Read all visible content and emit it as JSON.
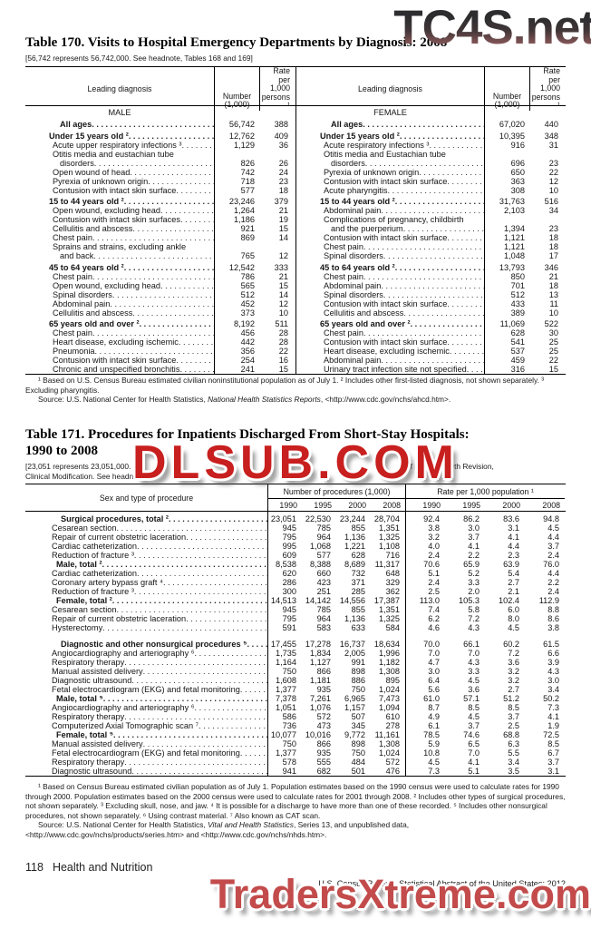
{
  "watermarks": {
    "top": "TC4S.net",
    "middle": "DLSUB.COM",
    "bottom": "TradersXtreme.com",
    "red": "#c81f1f"
  },
  "table170": {
    "title": "Table 170. Visits to Hospital Emergency Departments by Diagnosis: 2008",
    "headnote": "[56,742 represents 56,742,000. See headnote, Tables 168 and 169]",
    "header": {
      "diagnosis": "Leading diagnosis",
      "number": "Number\n(1,000)",
      "rate": "Rate per\n1,000\npersons ¹"
    },
    "male_label": "MALE",
    "female_label": "FEMALE",
    "rows": [
      [
        "a",
        "All ages",
        "56,742",
        "388",
        "a",
        "All ages",
        "67,020",
        "440"
      ],
      [
        "g",
        "Under 15 years old ²",
        "12,762",
        "409",
        "g",
        "Under 15 years old ²",
        "10,395",
        "348"
      ],
      [
        "i",
        "Acute upper respiratory infections ³",
        "1,129",
        "36",
        "i",
        "Acute respiratory infections ³",
        "916",
        "31"
      ],
      [
        "w",
        "Otitis media and eustachian tube",
        "",
        "",
        "w",
        "Otitis media and Eustachian tube",
        "",
        ""
      ],
      [
        "c",
        "disorders",
        "826",
        "26",
        "c",
        "disorders",
        "696",
        "23"
      ],
      [
        "i",
        "Open wound of head",
        "742",
        "24",
        "i",
        "Pyrexia of unknown origin",
        "650",
        "22"
      ],
      [
        "i",
        "Pyrexia of unknown origin",
        "718",
        "23",
        "i",
        "Contusion with intact skin surface",
        "363",
        "12"
      ],
      [
        "i",
        "Contusion with intact skin surface",
        "577",
        "18",
        "i",
        "Acute pharyngitis",
        "308",
        "10"
      ],
      [
        "g",
        "15 to 44 years old ²",
        "23,246",
        "379",
        "g",
        "15 to 44 years old ²",
        "31,763",
        "516"
      ],
      [
        "i",
        "Open wound, excluding head",
        "1,264",
        "21",
        "i",
        "Abdominal pain",
        "2,103",
        "34"
      ],
      [
        "i",
        "Contusion with intact skin surfaces",
        "1,186",
        "19",
        "w",
        "Complications of pregnancy, childbirth",
        "",
        ""
      ],
      [
        "i",
        "Cellulitis and abscess",
        "921",
        "15",
        "c",
        "and the puerperium",
        "1,394",
        "23"
      ],
      [
        "i",
        "Chest pain",
        "869",
        "14",
        "i",
        "Contusion with intact skin surface",
        "1,121",
        "18"
      ],
      [
        "w",
        "Sprains and strains, excluding ankle",
        "",
        "",
        "i",
        "Chest pain",
        "1,121",
        "18"
      ],
      [
        "c",
        "and back",
        "765",
        "12",
        "i",
        "Spinal disorders",
        "1,048",
        "17"
      ],
      [
        "g",
        "45 to 64 years old ²",
        "12,542",
        "333",
        "g",
        "45 to 64 years old ²",
        "13,793",
        "346"
      ],
      [
        "i",
        "Chest pain",
        "786",
        "21",
        "i",
        "Chest pain",
        "850",
        "21"
      ],
      [
        "i",
        "Open wound, excluding head",
        "565",
        "15",
        "i",
        "Abdominal pain",
        "701",
        "18"
      ],
      [
        "i",
        "Spinal disorders",
        "512",
        "14",
        "i",
        "Spinal disorders",
        "512",
        "13"
      ],
      [
        "i",
        "Abdominal pain",
        "452",
        "12",
        "i",
        "Contusion with intact skin surface",
        "433",
        "11"
      ],
      [
        "i",
        "Cellulitis and abscess",
        "373",
        "10",
        "i",
        "Cellulitis and abscess",
        "389",
        "10"
      ],
      [
        "g",
        "65 years old and over ²",
        "8,192",
        "511",
        "g",
        "65 years old and over ²",
        "11,069",
        "522"
      ],
      [
        "i",
        "Chest pain",
        "456",
        "28",
        "i",
        "Chest pain",
        "628",
        "30"
      ],
      [
        "i",
        "Heart disease, excluding ischemic",
        "442",
        "28",
        "i",
        "Contusion with intact skin surface",
        "541",
        "25"
      ],
      [
        "i",
        "Pneumonia",
        "356",
        "22",
        "i",
        "Heart disease, excluding ischemic",
        "537",
        "25"
      ],
      [
        "i",
        "Contusion with intact skin surface",
        "254",
        "16",
        "i",
        "Abdominal pain",
        "459",
        "22"
      ],
      [
        "i",
        "Chronic and unspecified bronchitis",
        "241",
        "15",
        "i",
        "Urinary tract infection site not specified",
        "316",
        "15"
      ]
    ],
    "footnote1": "¹ Based on U.S. Census Bureau estimated civilian noninstitutional population as of July 1. ² Includes other first-listed diagnosis, not shown separately. ³ Excluding pharyngitis.",
    "source_prefix": "Source: U.S. National Center for Health Statistics, ",
    "source_italic": "National Health Statistics Reports",
    "source_suffix": ", <http://www.cdc.gov/nchs/ahcd.htm>."
  },
  "table171": {
    "title_line1": "Table 171. Procedures for Inpatients Discharged From Short-Stay Hospitals:",
    "title_line2": "1990 to 2008",
    "headnote_l1a": "[23,051 represents 23,051,000. I",
    "headnote_l1b": "of Diseases, 9th Revision,",
    "headnote_l2": "Clinical Modification. See headn",
    "header": {
      "stub": "Sex and type of procedure",
      "group1": "Number of procedures (1,000)",
      "group2": "Rate per 1,000 population ¹"
    },
    "years": [
      "1990",
      "1995",
      "2000",
      "2008"
    ],
    "rows": [
      [
        "tf",
        "Surgical procedures, total ²",
        "23,051",
        "22,530",
        "23,244",
        "28,704",
        "92.4",
        "86.2",
        "83.6",
        "94.8"
      ],
      [
        "i",
        "Cesarean section",
        "945",
        "785",
        "855",
        "1,351",
        "3.8",
        "3.0",
        "3.1",
        "4.5"
      ],
      [
        "i",
        "Repair of current obstetric laceration",
        "795",
        "964",
        "1,136",
        "1,325",
        "3.2",
        "3.7",
        "4.1",
        "4.4"
      ],
      [
        "i",
        "Cardiac catheterization",
        "995",
        "1,068",
        "1,221",
        "1,108",
        "4.0",
        "4.1",
        "4.4",
        "3.7"
      ],
      [
        "i",
        "Reduction of fracture ³",
        "609",
        "577",
        "628",
        "716",
        "2.4",
        "2.2",
        "2.3",
        "2.4"
      ],
      [
        "m",
        "Male, total ²",
        "8,538",
        "8,388",
        "8,689",
        "11,317",
        "70.6",
        "65.9",
        "63.9",
        "76.0"
      ],
      [
        "i",
        "Cardiac catheterization",
        "620",
        "660",
        "732",
        "648",
        "5.1",
        "5.2",
        "5.4",
        "4.4"
      ],
      [
        "i",
        "Coronary artery bypass graft ⁴",
        "286",
        "423",
        "371",
        "329",
        "2.4",
        "3.3",
        "2.7",
        "2.2"
      ],
      [
        "i",
        "Reduction of fracture ³",
        "300",
        "251",
        "285",
        "362",
        "2.5",
        "2.0",
        "2.1",
        "2.4"
      ],
      [
        "m",
        "Female, total ²",
        "14,513",
        "14,142",
        "14,556",
        "17,387",
        "113.0",
        "105.3",
        "102.4",
        "112.9"
      ],
      [
        "i",
        "Cesarean section",
        "945",
        "785",
        "855",
        "1,351",
        "7.4",
        "5.8",
        "6.0",
        "8.8"
      ],
      [
        "i",
        "Repair of current obstetric laceration",
        "795",
        "964",
        "1,136",
        "1,325",
        "6.2",
        "7.2",
        "8.0",
        "8.6"
      ],
      [
        "i",
        "Hysterectomy",
        "591",
        "583",
        "633",
        "584",
        "4.6",
        "4.3",
        "4.5",
        "3.8"
      ],
      [
        "tg",
        "Diagnostic and other nonsurgical procedures ⁵",
        "17,455",
        "17,278",
        "16,737",
        "18,634",
        "70.0",
        "66.1",
        "60.2",
        "61.5"
      ],
      [
        "i",
        "Angiocardiography and arteriography ⁶",
        "1,735",
        "1,834",
        "2,005",
        "1,996",
        "7.0",
        "7.0",
        "7.2",
        "6.6"
      ],
      [
        "i",
        "Respiratory therapy",
        "1,164",
        "1,127",
        "991",
        "1,182",
        "4.7",
        "4.3",
        "3.6",
        "3.9"
      ],
      [
        "i",
        "Manual assisted delivery",
        "750",
        "866",
        "898",
        "1,308",
        "3.0",
        "3.3",
        "3.2",
        "4.3"
      ],
      [
        "i",
        "Diagnostic ultrasound",
        "1,608",
        "1,181",
        "886",
        "895",
        "6.4",
        "4.5",
        "3.2",
        "3.0"
      ],
      [
        "i",
        "Fetal electrocardiogram (EKG) and fetal monitoring",
        "1,377",
        "935",
        "750",
        "1,024",
        "5.6",
        "3.6",
        "2.7",
        "3.4"
      ],
      [
        "m",
        "Male, total ⁵",
        "7,378",
        "7,261",
        "6,965",
        "7,473",
        "61.0",
        "57.1",
        "51.2",
        "50.2"
      ],
      [
        "i",
        "Angiocardiography and arteriography ⁶",
        "1,051",
        "1,076",
        "1,157",
        "1,094",
        "8.7",
        "8.5",
        "8.5",
        "7.3"
      ],
      [
        "i",
        "Respiratory therapy",
        "586",
        "572",
        "507",
        "610",
        "4.9",
        "4.5",
        "3.7",
        "4.1"
      ],
      [
        "i",
        "Computerized Axial Tomographic scan ⁷",
        "736",
        "473",
        "345",
        "278",
        "6.1",
        "3.7",
        "2.5",
        "1.9"
      ],
      [
        "m",
        "Female, total ⁵",
        "10,077",
        "10,016",
        "9,772",
        "11,161",
        "78.5",
        "74.6",
        "68.8",
        "72.5"
      ],
      [
        "i",
        "Manual assisted delivery",
        "750",
        "866",
        "898",
        "1,308",
        "5.9",
        "6.5",
        "6.3",
        "8.5"
      ],
      [
        "i",
        "Fetal electrocardiogram (EKG) and fetal monitoring",
        "1,377",
        "935",
        "750",
        "1,024",
        "10.8",
        "7.0",
        "5.5",
        "6.7"
      ],
      [
        "i",
        "Respiratory therapy",
        "578",
        "555",
        "484",
        "572",
        "4.5",
        "4.1",
        "3.4",
        "3.7"
      ],
      [
        "i",
        "Diagnostic ultrasound",
        "941",
        "682",
        "501",
        "476",
        "7.3",
        "5.1",
        "3.5",
        "3.1"
      ]
    ],
    "footnote1": "¹ Based on Census Bureau estimated civilian population as of July 1. Population estimates based on the 1990 census were used to calculate rates for 1990 through 2000. Population estimates based on the 2000 census were used to calculate rates for 2001 through 2008. ² Includes other types of surgical procedures, not shown separately. ³ Excluding skull, nose, and jaw. ⁴ It is possible for a discharge to have more than one of these recorded. ⁵ Includes other nonsurgical procedures, not shown separately. ⁶ Using contrast material. ⁷ Also known as CAT scan.",
    "source_prefix": "Source: U.S. National Center for Health Statistics, ",
    "source_italic": "Vital and Health Statistics",
    "source_suffix": ", Series 13, and unpublished data, <http://www.cdc.gov/nchs/products/series.htm> and <http://www.cdc.gov/nchs/nhds.htm>."
  },
  "footer": {
    "page": "118",
    "section": "Health and Nutrition",
    "credit": "U.S. Census Bureau, Statistical Abstract of the United States: 2012"
  }
}
